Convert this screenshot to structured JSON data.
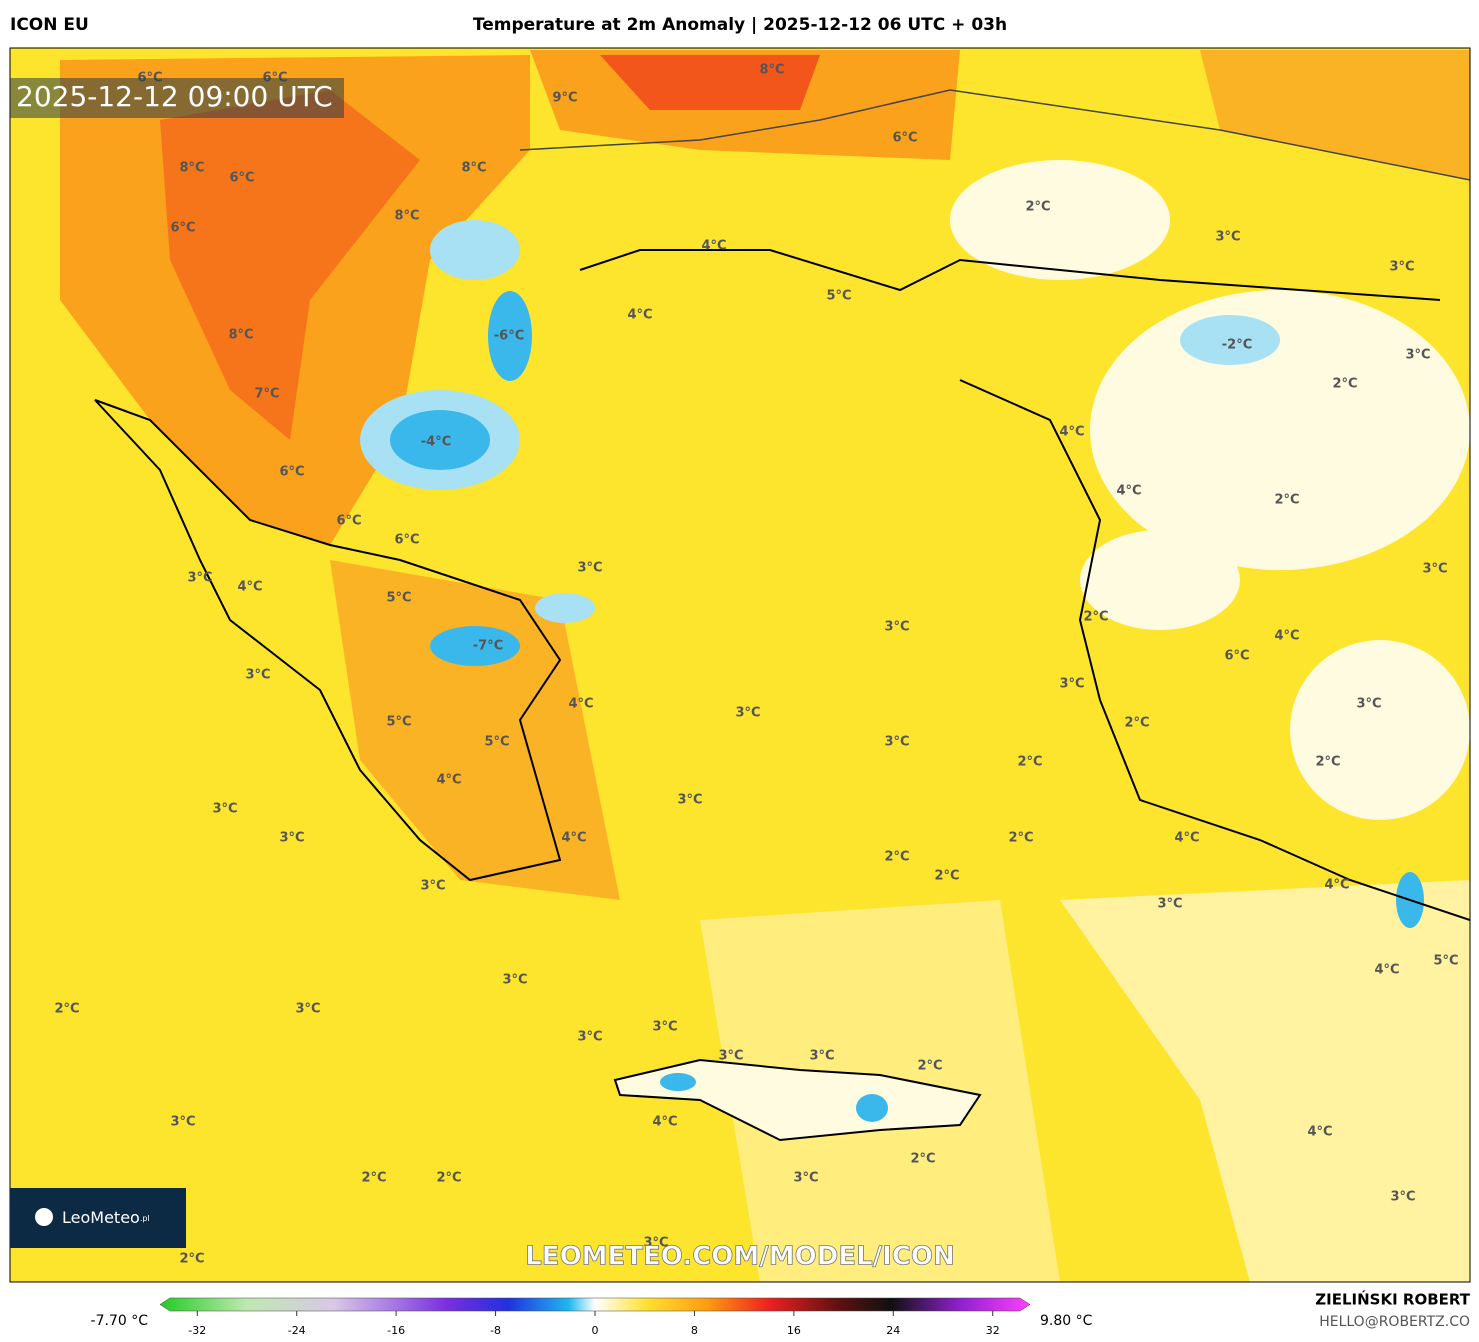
{
  "header": {
    "model": "ICON EU",
    "title": "Temperature at 2m Anomaly | 2025-12-12 06 UTC + 03h",
    "timestamp": "2025-12-12 09:00 UTC"
  },
  "map": {
    "watermark": "LEOMETEO.COM/MODEL/ICON",
    "logo": {
      "brand": "LeoMeteo",
      "suffix": ".pl"
    },
    "labels": [
      "6°C",
      "6°C",
      "9°C",
      "8°C",
      "6°C",
      "8°C",
      "6°C",
      "8°C",
      "6°C",
      "8°C",
      "2°C",
      "4°C",
      "3°C",
      "3°C",
      "5°C",
      "4°C",
      "-6°C",
      "8°C",
      "-2°C",
      "3°C",
      "2°C",
      "7°C",
      "-4°C",
      "4°C",
      "6°C",
      "4°C",
      "2°C",
      "6°C",
      "6°C",
      "3°C",
      "4°C",
      "3°C",
      "3°C",
      "5°C",
      "2°C",
      "3°C",
      "4°C",
      "-7°C",
      "6°C",
      "3°C",
      "3°C",
      "4°C",
      "3°C",
      "3°C",
      "5°C",
      "2°C",
      "5°C",
      "3°C",
      "2°C",
      "2°C",
      "4°C",
      "3°C",
      "3°C",
      "3°C",
      "4°C",
      "2°C",
      "4°C",
      "2°C",
      "2°C",
      "3°C",
      "4°C",
      "3°C",
      "4°C",
      "5°C",
      "3°C",
      "2°C",
      "3°C",
      "3°C",
      "3°C",
      "3°C",
      "3°C",
      "2°C",
      "4°C",
      "3°C",
      "4°C",
      "2°C",
      "2°C",
      "2°C",
      "3°C",
      "3°C",
      "3°C",
      "2°C"
    ]
  },
  "colorbar": {
    "min_label": "-7.70 °C",
    "max_label": "9.80 °C",
    "range": [
      -35,
      35
    ],
    "ticks": [
      -32,
      -24,
      -16,
      -8,
      0,
      8,
      16,
      24,
      32
    ]
  },
  "footer": {
    "author": "ZIELIŃSKI ROBERT",
    "email": "HELLO@ROBERTZ.CO"
  }
}
